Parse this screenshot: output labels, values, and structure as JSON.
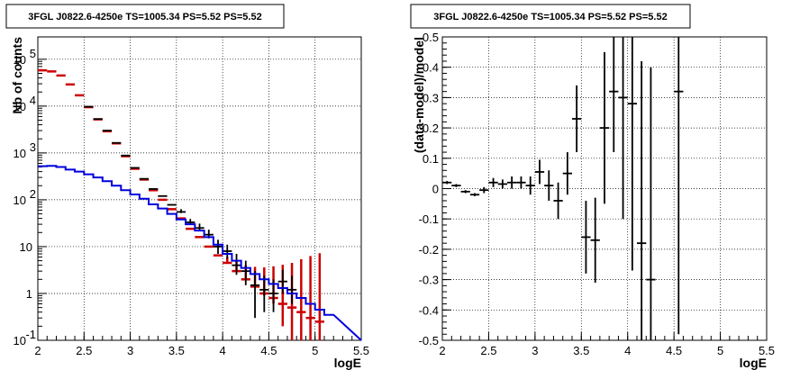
{
  "chart_data": [
    {
      "type": "line",
      "title": "3FGL J0822.6-4250e TS=1005.34 PS=5.52 PS=5.52",
      "xlabel": "logE",
      "ylabel": "Nb of counts",
      "xlim": [
        2,
        5.5
      ],
      "ylim": [
        0.1,
        300000
      ],
      "yscale": "log",
      "grid": true,
      "x_ticks": [
        "2",
        "2.5",
        "3",
        "3.5",
        "4",
        "4.5",
        "5",
        "5.5"
      ],
      "y_ticks": [
        "10^-1",
        "1",
        "10",
        "10^2",
        "10^3",
        "10^4",
        "10^5"
      ],
      "y_tick_text": [
        "10",
        "1",
        "10",
        "10",
        "10",
        "10",
        "10"
      ],
      "y_tick_exp": [
        "-1",
        "",
        "",
        "2",
        "3",
        "4",
        "5"
      ],
      "colors": {
        "model_total": "#cc0000",
        "data": "#000000",
        "component": "#0000dd"
      },
      "series": [
        {
          "name": "",
          "role": "model_total",
          "x": [
            2.05,
            2.15,
            2.25,
            2.35,
            2.45,
            2.55,
            2.65,
            2.75,
            2.85,
            2.95,
            3.05,
            3.15,
            3.25,
            3.35,
            3.45,
            3.55,
            3.65,
            3.75,
            3.85,
            3.95,
            4.05,
            4.15,
            4.25,
            4.35,
            4.45,
            4.55,
            4.65,
            4.75,
            4.85,
            4.95,
            5.05
          ],
          "values": [
            58000,
            55000,
            45000,
            29000,
            17000,
            9500,
            5200,
            2900,
            1600,
            850,
            460,
            270,
            160,
            100,
            63,
            40,
            24,
            16,
            10,
            6.5,
            4.5,
            3.0,
            2.0,
            1.4,
            1.0,
            0.8,
            0.6,
            0.5,
            0.4,
            0.3,
            0.25
          ],
          "err_low": [
            0,
            0,
            0,
            0,
            0,
            0,
            0,
            0,
            0,
            0,
            0,
            0,
            0,
            0,
            0,
            0,
            0,
            0,
            0,
            0,
            0,
            0,
            0,
            0,
            0.1,
            0.2,
            0.4,
            0.5,
            0.6,
            0.7,
            0.8
          ],
          "err_high": [
            0,
            0,
            0,
            0,
            0,
            0,
            0,
            0,
            0,
            0,
            0,
            0,
            0,
            0,
            0,
            0,
            0,
            0,
            0,
            0,
            1.5,
            1.8,
            2.0,
            2.3,
            2.6,
            3.0,
            3.5,
            4.0,
            5.0,
            6.0,
            7.0
          ]
        },
        {
          "name": "",
          "role": "data",
          "x": [
            2.55,
            2.65,
            2.75,
            2.85,
            2.95,
            3.05,
            3.15,
            3.25,
            3.35,
            3.45,
            3.55,
            3.65,
            3.75,
            3.85,
            3.95,
            4.05,
            4.15,
            4.25,
            4.35,
            4.45,
            4.55,
            4.65,
            4.75
          ],
          "values": [
            9700,
            5300,
            3000,
            1640,
            880,
            480,
            280,
            170,
            120,
            78,
            55,
            33,
            25,
            18,
            10,
            8,
            4,
            3,
            1.5,
            1.2,
            1.0,
            1.8,
            1.2
          ],
          "err_low": [
            0,
            0,
            0,
            0,
            0,
            0,
            0,
            0,
            0,
            0,
            3,
            3,
            3,
            3,
            3,
            2.5,
            1.5,
            1.5,
            1.2,
            0.8,
            0.6,
            0.8,
            0.6
          ],
          "err_high": [
            0,
            0,
            0,
            0,
            0,
            0,
            0,
            0,
            0,
            0,
            8,
            6,
            6,
            5,
            4,
            3,
            3,
            2,
            1.5,
            1.2,
            1.0,
            1.4,
            1.2
          ]
        },
        {
          "name": "",
          "role": "component",
          "type": "step",
          "x": [
            2.0,
            2.1,
            2.2,
            2.3,
            2.4,
            2.5,
            2.6,
            2.7,
            2.8,
            2.9,
            3.0,
            3.1,
            3.2,
            3.3,
            3.4,
            3.5,
            3.6,
            3.7,
            3.8,
            3.9,
            4.0,
            4.1,
            4.2,
            4.3,
            4.4,
            4.5,
            4.6,
            4.7,
            4.8,
            4.9,
            5.0,
            5.1
          ],
          "values": [
            520,
            530,
            500,
            440,
            400,
            350,
            300,
            250,
            200,
            160,
            130,
            105,
            80,
            65,
            50,
            38,
            30,
            22,
            16,
            11,
            7,
            5,
            3.5,
            2.6,
            2,
            1.6,
            1.3,
            1.0,
            0.8,
            0.6,
            0.45,
            0.35
          ]
        }
      ]
    },
    {
      "type": "scatter",
      "title": "3FGL J0822.6-4250e TS=1005.34 PS=5.52 PS=5.52",
      "xlabel": "logE",
      "ylabel": "(data-model)/model",
      "xlim": [
        2,
        5.5
      ],
      "ylim": [
        -0.5,
        0.5
      ],
      "grid": true,
      "x_ticks": [
        "2",
        "2.5",
        "3",
        "3.5",
        "4",
        "4.5",
        "5",
        "5.5"
      ],
      "y_ticks": [
        "-0.5",
        "-0.4",
        "-0.3",
        "-0.2",
        "-0.1",
        "0",
        "0.1",
        "0.2",
        "0.3",
        "0.4",
        "0.5"
      ],
      "series": [
        {
          "name": "",
          "x": [
            2.05,
            2.15,
            2.25,
            2.35,
            2.45,
            2.55,
            2.65,
            2.75,
            2.85,
            2.95,
            3.05,
            3.15,
            3.25,
            3.35,
            3.45,
            3.55,
            3.65,
            3.75,
            3.85,
            3.95,
            4.05,
            4.15,
            4.25,
            4.55
          ],
          "values": [
            0.02,
            0.01,
            -0.01,
            -0.02,
            -0.005,
            0.02,
            0.015,
            0.02,
            0.02,
            0.01,
            0.055,
            0.01,
            -0.04,
            0.05,
            0.23,
            -0.16,
            -0.17,
            0.2,
            0.32,
            0.3,
            0.28,
            -0.18,
            -0.3,
            0.32
          ],
          "err": [
            0.005,
            0.005,
            0.005,
            0.005,
            0.01,
            0.015,
            0.015,
            0.02,
            0.02,
            0.03,
            0.04,
            0.05,
            0.06,
            0.07,
            0.11,
            0.12,
            0.14,
            0.25,
            0.2,
            0.4,
            0.55,
            0.6,
            0.7,
            0.8
          ]
        }
      ]
    }
  ]
}
